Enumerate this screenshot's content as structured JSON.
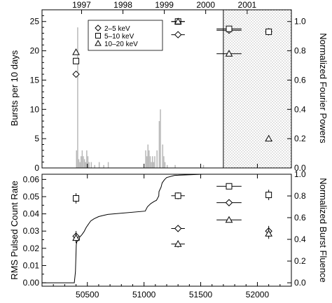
{
  "chart_data": [
    {
      "type": "bar",
      "panel": "top",
      "ylabel_left": "Bursts per 10 days",
      "ylabel_right": "Normalized Fourier Powers",
      "top_axis_labels": [
        "1997",
        "1998",
        "1999",
        "2000",
        "2001"
      ],
      "top_axis_positions_mjd": [
        50449,
        50814,
        51179,
        51544,
        51910
      ],
      "xlim": [
        50100,
        52300
      ],
      "ylim_left": [
        0,
        27
      ],
      "yticks_left": [
        0,
        5,
        10,
        15,
        20,
        25
      ],
      "ylim_right": [
        0,
        1.08
      ],
      "yticks_right": [
        "0.0",
        "0.2",
        "0.4",
        "0.6",
        "0.8",
        "1.0"
      ],
      "shaded_region_mjd": [
        51700,
        52300
      ],
      "legend": [
        {
          "marker": "diamond",
          "label": "2–5 keV"
        },
        {
          "marker": "square",
          "label": "5–10 keV"
        },
        {
          "marker": "triangle",
          "label": "10–20 keV"
        }
      ],
      "histogram": {
        "bin_days": 10,
        "mjd_start": [
          50400,
          50410,
          50420,
          50430,
          50440,
          50450,
          50460,
          50470,
          50480,
          50490,
          50500,
          50510,
          50530,
          50560,
          50600,
          50640,
          50680,
          51010,
          51020,
          51030,
          51040,
          51050,
          51060,
          51070,
          51080,
          51090,
          51110,
          51130,
          51140,
          51160,
          51170,
          51180,
          51200,
          51270,
          51520
        ],
        "counts": [
          3,
          24,
          1.5,
          1,
          2,
          3,
          2,
          1.5,
          1,
          3,
          2,
          1,
          1,
          0.5,
          1,
          0.5,
          1,
          3,
          2,
          4,
          3,
          2,
          1,
          2,
          1,
          2,
          3,
          8,
          10,
          4,
          2,
          1,
          0.5,
          0.5,
          0.5
        ]
      },
      "fourier_power": [
        {
          "band": "2–5 keV",
          "x": [
            50400,
            51300,
            51750,
            52100
          ],
          "y": [
            0.64,
            0.91,
            0.94,
            0.93
          ],
          "xerr": [
            0,
            60,
            110,
            0
          ],
          "yerr": [
            0,
            0.01,
            0.01,
            0.01
          ]
        },
        {
          "band": "5–10 keV",
          "x": [
            50400,
            51300,
            51750,
            52100
          ],
          "y": [
            0.73,
            1.0,
            0.95,
            0.93
          ],
          "xerr": [
            0,
            60,
            110,
            0
          ],
          "yerr": [
            0,
            0.01,
            0.01,
            0.01
          ]
        },
        {
          "band": "10–20 keV",
          "x": [
            50400,
            51300,
            51750,
            52100
          ],
          "y": [
            0.79,
            1.0,
            0.78,
            0.2
          ],
          "xerr": [
            0,
            60,
            110,
            0
          ],
          "yerr": [
            0,
            0.01,
            0.01,
            0.01
          ]
        }
      ]
    },
    {
      "type": "scatter",
      "panel": "bottom",
      "ylabel_left": "RMS Pulsed Count Rate",
      "ylabel_right": "Normalized Burst Fluence",
      "xlim": [
        50100,
        52300
      ],
      "xticks": [
        50500,
        51000,
        51500,
        52000
      ],
      "ylim_left": [
        -0.002,
        0.063
      ],
      "yticks_left": [
        "0.00",
        "0.01",
        "0.02",
        "0.03",
        "0.04",
        "0.05",
        "0.06"
      ],
      "ylim_right": [
        -0.0317,
        1.0
      ],
      "yticks_right": [
        "0.0",
        "0.2",
        "0.4",
        "0.6",
        "0.8",
        "1.0"
      ],
      "series": [
        {
          "marker": "square",
          "x": [
            50400,
            51300,
            51750,
            52100
          ],
          "y": [
            0.049,
            0.0505,
            0.056,
            0.051
          ],
          "xerr": [
            0,
            60,
            110,
            0
          ],
          "yerr": [
            0.003,
            0.002,
            0.0015,
            0.003
          ]
        },
        {
          "marker": "diamond",
          "x": [
            50400,
            51300,
            51750,
            52100
          ],
          "y": [
            0.027,
            0.0315,
            0.0465,
            0.03
          ],
          "xerr": [
            0,
            60,
            110,
            0
          ],
          "yerr": [
            0.003,
            0.002,
            0.0015,
            0.003
          ]
        },
        {
          "marker": "triangle",
          "x": [
            50400,
            51300,
            51750,
            52100
          ],
          "y": [
            0.026,
            0.0225,
            0.0365,
            0.0285
          ],
          "xerr": [
            0,
            60,
            110,
            0
          ],
          "yerr": [
            0.003,
            0.002,
            0.0015,
            0.003
          ]
        }
      ],
      "fluence_curve": {
        "x": [
          50100,
          50385,
          50395,
          50402,
          50408,
          50430,
          50432,
          50450,
          50470,
          50490,
          50510,
          50530,
          50560,
          50600,
          50640,
          50680,
          51010,
          51030,
          51060,
          51090,
          51110,
          51130,
          51132,
          51150,
          51160,
          51180,
          51200,
          51270,
          51520,
          52300
        ],
        "y": [
          0,
          0,
          0.1,
          0.35,
          0.38,
          0.4,
          0.42,
          0.44,
          0.47,
          0.51,
          0.54,
          0.57,
          0.59,
          0.61,
          0.62,
          0.63,
          0.66,
          0.7,
          0.73,
          0.75,
          0.76,
          0.8,
          0.84,
          0.88,
          0.92,
          0.95,
          0.97,
          0.99,
          1.0,
          1.0
        ]
      }
    }
  ]
}
